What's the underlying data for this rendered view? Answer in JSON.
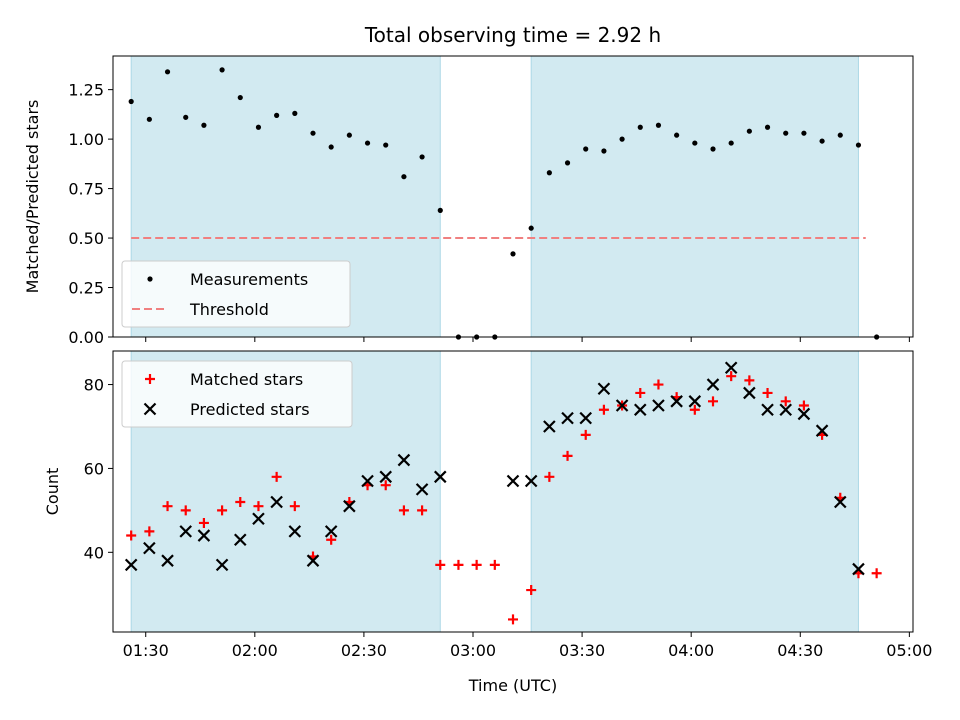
{
  "figure": {
    "title": "Total observing time = 2.92 h",
    "xlabel": "Time (UTC)"
  },
  "chart_data": [
    {
      "type": "scatter",
      "ylabel": "Matched/Predicted stars",
      "ylim": [
        0,
        1.42
      ],
      "yticks": [
        0.0,
        0.25,
        0.5,
        0.75,
        1.0,
        1.25
      ],
      "ytick_labels": [
        "0.00",
        "0.25",
        "0.50",
        "0.75",
        "1.00",
        "1.25"
      ],
      "xlim": [
        "01:21",
        "05:01"
      ],
      "xticks": [
        "01:30",
        "02:00",
        "02:30",
        "03:00",
        "03:30",
        "04:00",
        "04:30",
        "05:00"
      ],
      "shaded_intervals": [
        [
          "01:26",
          "02:51"
        ],
        [
          "03:16",
          "04:46"
        ]
      ],
      "shade_color": "#add8e6",
      "legend": {
        "position": "lower-left",
        "entries": [
          "Measurements",
          "Threshold"
        ]
      },
      "series": [
        {
          "name": "Measurements",
          "marker": "dot",
          "color": "#000000",
          "x": [
            "01:26",
            "01:31",
            "01:36",
            "01:41",
            "01:46",
            "01:51",
            "01:56",
            "02:01",
            "02:06",
            "02:11",
            "02:16",
            "02:21",
            "02:26",
            "02:31",
            "02:36",
            "02:41",
            "02:46",
            "02:51",
            "02:56",
            "03:01",
            "03:06",
            "03:11",
            "03:16",
            "03:21",
            "03:26",
            "03:31",
            "03:36",
            "03:41",
            "03:46",
            "03:51",
            "03:56",
            "04:01",
            "04:06",
            "04:11",
            "04:16",
            "04:21",
            "04:26",
            "04:31",
            "04:36",
            "04:41",
            "04:46",
            "04:51"
          ],
          "y": [
            1.19,
            1.1,
            1.34,
            1.11,
            1.07,
            1.35,
            1.21,
            1.06,
            1.12,
            1.13,
            1.03,
            0.96,
            1.02,
            0.98,
            0.97,
            0.81,
            0.91,
            0.64,
            0.0,
            0.0,
            0.0,
            0.42,
            0.55,
            0.83,
            0.88,
            0.95,
            0.94,
            1.0,
            1.06,
            1.07,
            1.02,
            0.98,
            0.95,
            0.98,
            1.04,
            1.06,
            1.03,
            1.03,
            0.99,
            1.02,
            0.97,
            0.0
          ]
        },
        {
          "name": "Threshold",
          "style": "dashed",
          "color": "#f08080",
          "x": [
            "01:26",
            "04:48"
          ],
          "y": [
            0.5,
            0.5
          ]
        }
      ]
    },
    {
      "type": "scatter",
      "ylabel": "Count",
      "ylim": [
        21,
        88
      ],
      "yticks": [
        40,
        60,
        80
      ],
      "ytick_labels": [
        "40",
        "60",
        "80"
      ],
      "xlim": [
        "01:21",
        "05:01"
      ],
      "xticks": [
        "01:30",
        "02:00",
        "02:30",
        "03:00",
        "03:30",
        "04:00",
        "04:30",
        "05:00"
      ],
      "xtick_labels": [
        "01:30",
        "02:00",
        "02:30",
        "03:00",
        "03:30",
        "04:00",
        "04:30",
        "05:00"
      ],
      "shaded_intervals": [
        [
          "01:26",
          "02:51"
        ],
        [
          "03:16",
          "04:46"
        ]
      ],
      "shade_color": "#add8e6",
      "legend": {
        "position": "upper-left",
        "entries": [
          "Matched stars",
          "Predicted stars"
        ]
      },
      "series": [
        {
          "name": "Matched stars",
          "marker": "plus",
          "color": "#ff0000",
          "x": [
            "01:26",
            "01:31",
            "01:36",
            "01:41",
            "01:46",
            "01:51",
            "01:56",
            "02:01",
            "02:06",
            "02:11",
            "02:16",
            "02:21",
            "02:26",
            "02:31",
            "02:36",
            "02:41",
            "02:46",
            "02:51",
            "02:56",
            "03:01",
            "03:06",
            "03:11",
            "03:16",
            "03:21",
            "03:26",
            "03:31",
            "03:36",
            "03:41",
            "03:46",
            "03:51",
            "03:56",
            "04:01",
            "04:06",
            "04:11",
            "04:16",
            "04:21",
            "04:26",
            "04:31",
            "04:36",
            "04:41",
            "04:46",
            "04:51"
          ],
          "y": [
            44,
            45,
            51,
            50,
            47,
            50,
            52,
            51,
            58,
            51,
            39,
            43,
            52,
            56,
            56,
            50,
            50,
            37,
            37,
            37,
            37,
            24,
            31,
            58,
            63,
            68,
            74,
            75,
            78,
            80,
            77,
            74,
            76,
            82,
            81,
            78,
            76,
            75,
            68,
            53,
            35,
            35
          ]
        },
        {
          "name": "Predicted stars",
          "marker": "x",
          "color": "#000000",
          "x": [
            "01:26",
            "01:31",
            "01:36",
            "01:41",
            "01:46",
            "01:51",
            "01:56",
            "02:01",
            "02:06",
            "02:11",
            "02:16",
            "02:21",
            "02:26",
            "02:31",
            "02:36",
            "02:41",
            "02:46",
            "02:51",
            "03:11",
            "03:16",
            "03:21",
            "03:26",
            "03:31",
            "03:36",
            "03:41",
            "03:46",
            "03:51",
            "03:56",
            "04:01",
            "04:06",
            "04:11",
            "04:16",
            "04:21",
            "04:26",
            "04:31",
            "04:36",
            "04:41",
            "04:46"
          ],
          "y": [
            37,
            41,
            38,
            45,
            44,
            37,
            43,
            48,
            52,
            45,
            38,
            45,
            51,
            57,
            58,
            62,
            55,
            58,
            57,
            57,
            70,
            72,
            72,
            79,
            75,
            74,
            75,
            76,
            76,
            80,
            84,
            78,
            74,
            74,
            73,
            69,
            52,
            36
          ]
        }
      ]
    }
  ]
}
